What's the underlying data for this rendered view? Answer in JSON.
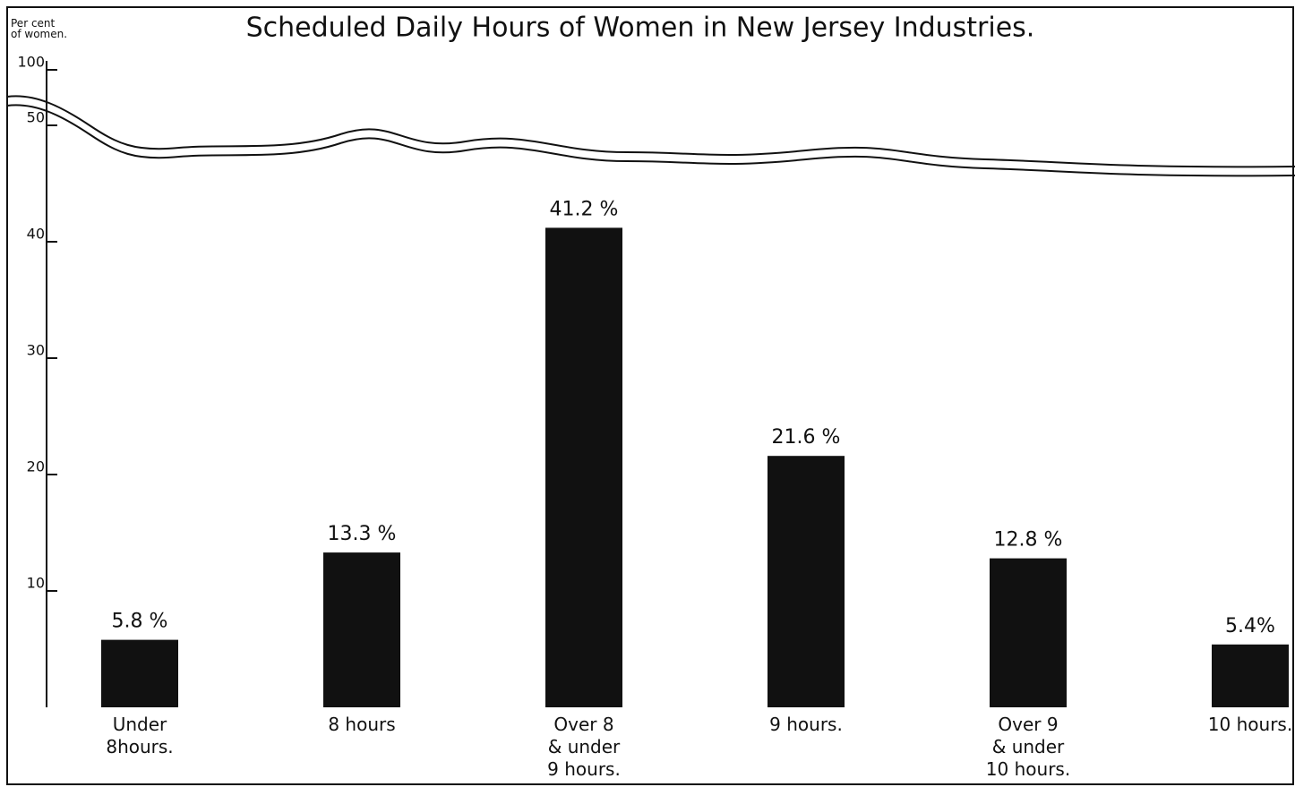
{
  "chart_data": {
    "type": "bar",
    "title": "Scheduled Daily Hours of Women in New Jersey Industries.",
    "y_label": "Per cent\nof women.",
    "categories": [
      "Under\n8hours.",
      "8 hours",
      "Over 8\n& under\n9 hours.",
      "9 hours.",
      "Over 9\n& under\n10 hours.",
      "10 hours."
    ],
    "values": [
      5.8,
      13.3,
      41.2,
      21.6,
      12.8,
      5.4
    ],
    "value_labels": [
      "5.8 %",
      "13.3 %",
      "41.2 %",
      "21.6 %",
      "12.8 %",
      "5.4%"
    ],
    "color": "#111111",
    "ylim": [
      0,
      50
    ],
    "yticks": [
      10,
      20,
      30,
      40,
      50,
      100
    ],
    "axis_break": true
  }
}
